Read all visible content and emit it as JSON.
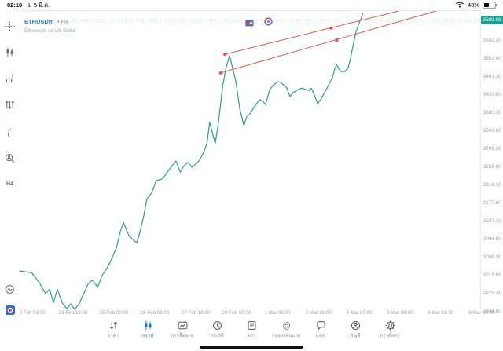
{
  "status": {
    "time": "02:10",
    "date": "อ. 5 มี.ค.",
    "battery_percent": "43%",
    "icons": [
      "wifi-icon",
      "battery-icon"
    ]
  },
  "chart": {
    "title_symbol": "ETHUSDm",
    "title_timeframe": "• H4",
    "description": "Ethereum vs US Dollar",
    "current_price_label": "3589.09",
    "object_icons": [
      "flag-marker-icon",
      "clock-marker-icon"
    ],
    "colors": {
      "line_teal": "#2aa183",
      "trend_red": "#e8524a",
      "badge_teal": "#18a08f",
      "symbol_blue": "#1a7fd4",
      "accent_blue": "#0a7aff"
    }
  },
  "chart_data": {
    "type": "line",
    "symbol": "ETHUSDm",
    "timeframe": "H4",
    "title": "Ethereum vs US Dollar",
    "current_price": 3589.09,
    "ylim": [
      2928,
      3611
    ],
    "grid": false,
    "legend": "none",
    "y_ticks": [
      3542.3,
      3501.8,
      3461.3,
      3420.8,
      3380.3,
      3339.8,
      3299.3,
      3258.8,
      3218.3,
      3177.8,
      3137.3,
      3096.8,
      3056.3,
      3015.8,
      2975.3,
      2934.8
    ],
    "x_ticks": [
      "2 Feb 08:00",
      "23 Feb 16:00",
      "25 Feb 00:00",
      "26 Feb 08:00",
      "27 Feb 16:00",
      "29 Feb 00:00",
      "1 Mar 08:00",
      "2 Mar 16:00",
      "4 Mar 00:00",
      "5 Mar 08:00",
      "6 Mar 16:00",
      "8 Mar 00:00"
    ],
    "series": [
      {
        "name": "ETHUSD H4 close",
        "color": "#2aa183",
        "points": [
          [
            0.0,
            3025
          ],
          [
            0.026,
            3021
          ],
          [
            0.043,
            2998
          ],
          [
            0.056,
            2974
          ],
          [
            0.065,
            2984
          ],
          [
            0.073,
            2954
          ],
          [
            0.082,
            2983
          ],
          [
            0.092,
            2954
          ],
          [
            0.102,
            2940
          ],
          [
            0.111,
            2951
          ],
          [
            0.119,
            2938
          ],
          [
            0.128,
            2949
          ],
          [
            0.138,
            2972
          ],
          [
            0.148,
            2995
          ],
          [
            0.158,
            3005
          ],
          [
            0.169,
            2988
          ],
          [
            0.179,
            3016
          ],
          [
            0.189,
            3030
          ],
          [
            0.199,
            3051
          ],
          [
            0.21,
            3078
          ],
          [
            0.218,
            3113
          ],
          [
            0.225,
            3134
          ],
          [
            0.23,
            3122
          ],
          [
            0.237,
            3104
          ],
          [
            0.245,
            3096
          ],
          [
            0.254,
            3088
          ],
          [
            0.261,
            3113
          ],
          [
            0.269,
            3149
          ],
          [
            0.276,
            3187
          ],
          [
            0.286,
            3200
          ],
          [
            0.296,
            3228
          ],
          [
            0.31,
            3232
          ],
          [
            0.32,
            3247
          ],
          [
            0.331,
            3262
          ],
          [
            0.339,
            3272
          ],
          [
            0.348,
            3247
          ],
          [
            0.356,
            3261
          ],
          [
            0.365,
            3269
          ],
          [
            0.373,
            3258
          ],
          [
            0.382,
            3265
          ],
          [
            0.39,
            3274
          ],
          [
            0.399,
            3292
          ],
          [
            0.406,
            3311
          ],
          [
            0.412,
            3359
          ],
          [
            0.419,
            3330
          ],
          [
            0.424,
            3311
          ],
          [
            0.431,
            3359
          ],
          [
            0.44,
            3440
          ],
          [
            0.448,
            3484
          ],
          [
            0.455,
            3509
          ],
          [
            0.462,
            3479
          ],
          [
            0.469,
            3449
          ],
          [
            0.477,
            3390
          ],
          [
            0.486,
            3352
          ],
          [
            0.492,
            3371
          ],
          [
            0.499,
            3378
          ],
          [
            0.506,
            3390
          ],
          [
            0.515,
            3403
          ],
          [
            0.521,
            3410
          ],
          [
            0.528,
            3405
          ],
          [
            0.533,
            3399
          ],
          [
            0.542,
            3433
          ],
          [
            0.55,
            3443
          ],
          [
            0.559,
            3450
          ],
          [
            0.564,
            3450
          ],
          [
            0.572,
            3443
          ],
          [
            0.578,
            3438
          ],
          [
            0.586,
            3417
          ],
          [
            0.593,
            3426
          ],
          [
            0.601,
            3431
          ],
          [
            0.612,
            3436
          ],
          [
            0.62,
            3433
          ],
          [
            0.627,
            3431
          ],
          [
            0.632,
            3436
          ],
          [
            0.639,
            3420
          ],
          [
            0.646,
            3401
          ],
          [
            0.654,
            3413
          ],
          [
            0.661,
            3426
          ],
          [
            0.666,
            3435
          ],
          [
            0.673,
            3450
          ],
          [
            0.678,
            3459
          ],
          [
            0.683,
            3479
          ],
          [
            0.687,
            3489
          ],
          [
            0.692,
            3479
          ],
          [
            0.697,
            3473
          ],
          [
            0.705,
            3473
          ],
          [
            0.712,
            3481
          ],
          [
            0.717,
            3502
          ],
          [
            0.722,
            3528
          ],
          [
            0.729,
            3562
          ],
          [
            0.736,
            3583
          ],
          [
            0.741,
            3595
          ],
          [
            0.744,
            3604
          ]
        ]
      }
    ],
    "trendlines": [
      {
        "name": "upper-channel-line",
        "color": "#e8524a",
        "from": [
          0.445,
          3512
        ],
        "to": [
          0.821,
          3609
        ],
        "anchors": [
          [
            0.445,
            3512
          ],
          [
            0.675,
            3571
          ]
        ]
      },
      {
        "name": "lower-channel-line",
        "color": "#e8524a",
        "from": [
          0.436,
          3470
        ],
        "to": [
          0.908,
          3611
        ],
        "anchors": [
          [
            0.436,
            3470
          ],
          [
            0.687,
            3544
          ]
        ]
      }
    ]
  },
  "sidebar": {
    "tools": [
      {
        "key": "crosshair",
        "icon": "crosshair-icon"
      },
      {
        "key": "chart-type",
        "icon": "candlestick-icon"
      },
      {
        "key": "indicators",
        "icon": "indicators-icon"
      },
      {
        "key": "objects",
        "icon": "objects-sliders-icon"
      },
      {
        "key": "functions",
        "icon": "function-icon"
      },
      {
        "key": "symbol-search",
        "icon": "magnifier-person-icon"
      }
    ],
    "timeframe_label": "H4",
    "bottom_tools": [
      {
        "key": "history",
        "icon": "history-clock-icon"
      },
      {
        "key": "app-logo",
        "icon": "app-logo-icon"
      }
    ]
  },
  "nav": {
    "items": [
      {
        "key": "quotes",
        "icon": "arrows-updown-icon",
        "label": "ราคา",
        "active": false
      },
      {
        "key": "chart",
        "icon": "candlestick-icon",
        "label": "กราฟ",
        "active": true
      },
      {
        "key": "trade",
        "icon": "trade-chart-icon",
        "label": "การซื้อขาย",
        "active": false
      },
      {
        "key": "history",
        "icon": "clock-icon",
        "label": "ประวัติ",
        "active": false
      },
      {
        "key": "news",
        "icon": "news-icon",
        "label": "ข่าว",
        "active": false
      },
      {
        "key": "mailbox",
        "icon": "at-icon",
        "label": "กล่องจดหมาย",
        "active": false
      },
      {
        "key": "chat",
        "icon": "chat-bubble-icon",
        "label": "แชท",
        "active": false
      },
      {
        "key": "account",
        "icon": "person-icon",
        "label": "บัญชี",
        "active": false
      },
      {
        "key": "settings",
        "icon": "gear-icon",
        "label": "การตั้งค่า",
        "active": false
      }
    ]
  }
}
